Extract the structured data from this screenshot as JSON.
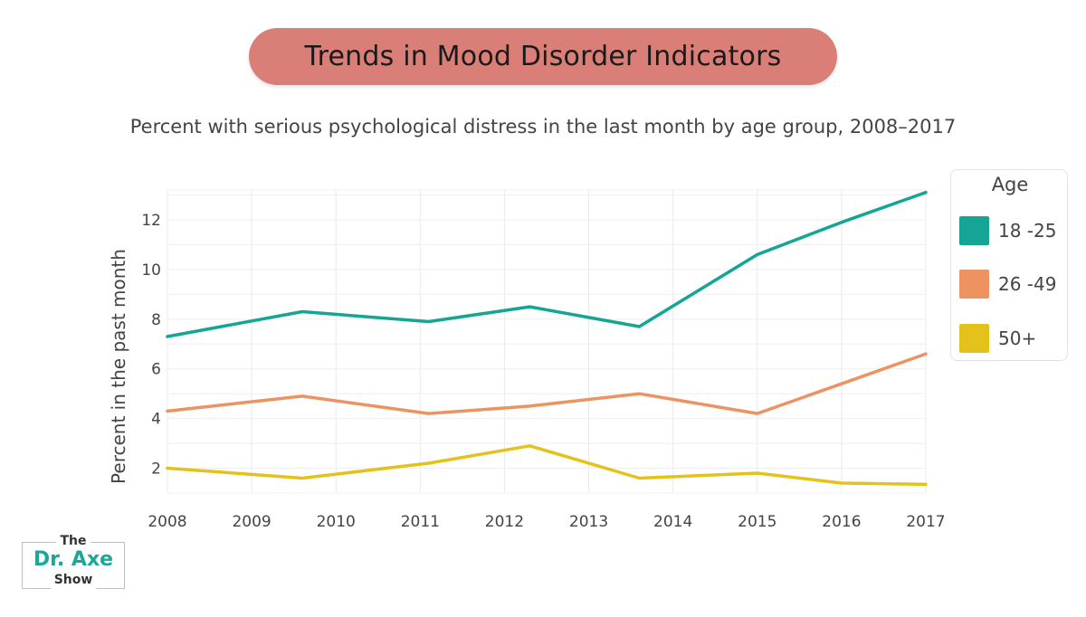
{
  "title": "Trends in Mood Disorder Indicators",
  "subtitle": "Percent with serious psychological distress in the last month by age group, 2008–2017",
  "chart_data": {
    "type": "line",
    "title": "Trends in Mood Disorder Indicators",
    "subtitle": "Percent with serious psychological distress in the last month by age group, 2008–2017",
    "xlabel": "",
    "ylabel": "Percent in the past month",
    "x_tick_labels": [
      "2008",
      "2009",
      "2010",
      "2011",
      "2012",
      "2013",
      "2014",
      "2015",
      "2016",
      "2017"
    ],
    "y_ticks": [
      2,
      4,
      6,
      8,
      10,
      12
    ],
    "xlim": [
      2008,
      2017
    ],
    "ylim": [
      1.0,
      13.2
    ],
    "grid": true,
    "legend_title": "Age",
    "legend_position": "right",
    "series": [
      {
        "name": "18 -25",
        "color": "#14a595",
        "x": [
          2008,
          2009.6,
          2011.1,
          2012.3,
          2013.6,
          2015,
          2016,
          2017
        ],
        "y": [
          7.3,
          8.3,
          7.9,
          8.5,
          7.7,
          10.6,
          11.9,
          13.1
        ]
      },
      {
        "name": "26 -49",
        "color": "#ec9361",
        "x": [
          2008,
          2009.6,
          2011.1,
          2012.3,
          2013.6,
          2015,
          2016,
          2017
        ],
        "y": [
          4.3,
          4.9,
          4.2,
          4.5,
          5.0,
          4.2,
          5.4,
          6.6
        ]
      },
      {
        "name": "50+",
        "color": "#e5c11c",
        "x": [
          2008,
          2009.6,
          2011.1,
          2012.3,
          2013.6,
          2015,
          2016,
          2017
        ],
        "y": [
          2.0,
          1.6,
          2.2,
          2.9,
          1.6,
          1.8,
          1.4,
          1.35
        ]
      }
    ]
  },
  "logo": {
    "line1": "The",
    "line2": "Dr. Axe",
    "line3": "Show"
  }
}
